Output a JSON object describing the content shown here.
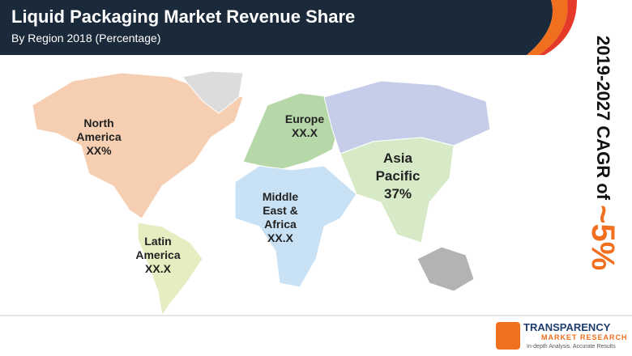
{
  "header": {
    "title": "Liquid Packaging Market Revenue Share",
    "subtitle": "By Region 2018 (Percentage)"
  },
  "regions": [
    {
      "name": "North America",
      "share": "XX%"
    },
    {
      "name": "Europe",
      "share": "XX.X"
    },
    {
      "name": "Asia Pacific",
      "share": "37%"
    },
    {
      "name": "Middle East & Africa",
      "share": "XX.X"
    },
    {
      "name": "Latin America",
      "share": "XX.X"
    }
  ],
  "cagr": {
    "label": "2019-2027 CAGR of",
    "value": "~5%"
  },
  "logo": {
    "name": "TRANSPARENCY",
    "line2": "MARKET RESEARCH",
    "tagline": "In-depth Analysis. Accurate Results"
  }
}
